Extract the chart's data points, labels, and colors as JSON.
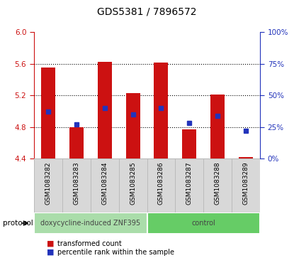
{
  "title": "GDS5381 / 7896572",
  "samples": [
    "GSM1083282",
    "GSM1083283",
    "GSM1083284",
    "GSM1083285",
    "GSM1083286",
    "GSM1083287",
    "GSM1083288",
    "GSM1083289"
  ],
  "transformed_counts": [
    5.55,
    4.8,
    5.63,
    5.23,
    5.62,
    4.77,
    5.21,
    4.42
  ],
  "percentile_ranks": [
    37,
    27,
    40,
    35,
    40,
    28,
    34,
    22
  ],
  "bar_base": 4.4,
  "ylim_left": [
    4.4,
    6.0
  ],
  "ylim_right": [
    0,
    100
  ],
  "yticks_left": [
    4.4,
    4.8,
    5.2,
    5.6,
    6.0
  ],
  "yticks_right": [
    0,
    25,
    50,
    75,
    100
  ],
  "grid_values": [
    4.8,
    5.2,
    5.6
  ],
  "bar_color": "#cc1111",
  "dot_color": "#2233bb",
  "bg_color": "#ffffff",
  "grey_cell_color": "#d8d8d8",
  "grey_cell_edge": "#bbbbbb",
  "protocol_groups": [
    {
      "label": "doxycycline-induced ZNF395",
      "start": 0,
      "end": 4,
      "color": "#aaddaa"
    },
    {
      "label": "control",
      "start": 4,
      "end": 8,
      "color": "#66cc66"
    }
  ],
  "protocol_label": "protocol",
  "legend_bar_label": "transformed count",
  "legend_dot_label": "percentile rank within the sample",
  "title_fontsize": 10,
  "tick_fontsize": 7.5,
  "sample_fontsize": 6.5,
  "legend_fontsize": 7,
  "protocol_fontsize": 7.5,
  "axis_color_left": "#cc1111",
  "axis_color_right": "#2233bb",
  "spine_color": "#888888"
}
